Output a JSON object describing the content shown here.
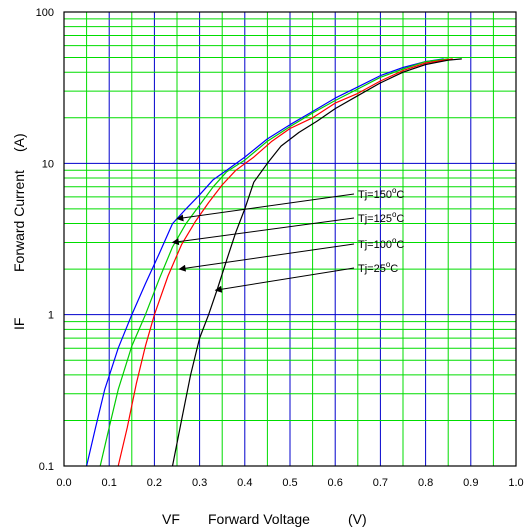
{
  "chart_data": {
    "type": "line",
    "title": "",
    "xlabel_prefix": "VF",
    "xlabel": "Forward Voltage",
    "xlabel_unit": "(V)",
    "ylabel_prefix": "IF",
    "ylabel": "Forward Current",
    "ylabel_unit": "(A)",
    "xlim": [
      0.0,
      1.0
    ],
    "ylim": [
      0.1,
      100
    ],
    "yscale": "log",
    "grid": true,
    "colors": {
      "grid_minor": "#00dd00",
      "grid_major": "#0000cc",
      "frame": "#000000",
      "annotation": "#000000"
    },
    "x_ticks": [
      "0.0",
      "0.1",
      "0.2",
      "0.3",
      "0.4",
      "0.5",
      "0.6",
      "0.7",
      "0.8",
      "0.9",
      "1.0"
    ],
    "y_ticks": [
      {
        "value": 0.1,
        "label": "0.1"
      },
      {
        "value": 1,
        "label": "1"
      },
      {
        "value": 10,
        "label": "10"
      },
      {
        "value": 100,
        "label": "100"
      }
    ],
    "series": [
      {
        "name": "Tj=150°C",
        "color": "#0000ff",
        "x": [
          0.05,
          0.07,
          0.09,
          0.12,
          0.15,
          0.18,
          0.21,
          0.24,
          0.27,
          0.3,
          0.33,
          0.36,
          0.4,
          0.45,
          0.5,
          0.55,
          0.6,
          0.65,
          0.7,
          0.75,
          0.8,
          0.84
        ],
        "y": [
          0.1,
          0.18,
          0.32,
          0.6,
          1.0,
          1.6,
          2.5,
          4.0,
          5.0,
          6.2,
          7.8,
          9.0,
          11.0,
          14.5,
          18.0,
          22.0,
          27.0,
          32.0,
          38.0,
          43.0,
          47.0,
          49.0
        ]
      },
      {
        "name": "Tj=125°C",
        "color": "#00cc00",
        "x": [
          0.08,
          0.1,
          0.12,
          0.15,
          0.18,
          0.21,
          0.24,
          0.27,
          0.3,
          0.33,
          0.36,
          0.4,
          0.45,
          0.5,
          0.55,
          0.6,
          0.65,
          0.7,
          0.75,
          0.8,
          0.85
        ],
        "y": [
          0.1,
          0.18,
          0.32,
          0.62,
          1.0,
          1.7,
          2.8,
          4.0,
          5.3,
          7.0,
          8.8,
          10.5,
          14.0,
          17.5,
          21.5,
          26.0,
          31.0,
          37.0,
          42.0,
          47.0,
          49.0
        ]
      },
      {
        "name": "Tj=100°C",
        "color": "#ff0000",
        "x": [
          0.12,
          0.14,
          0.16,
          0.18,
          0.2,
          0.23,
          0.26,
          0.29,
          0.32,
          0.35,
          0.38,
          0.42,
          0.46,
          0.5,
          0.55,
          0.6,
          0.65,
          0.7,
          0.75,
          0.8,
          0.86
        ],
        "y": [
          0.1,
          0.18,
          0.35,
          0.62,
          1.0,
          1.8,
          2.9,
          4.1,
          5.5,
          7.2,
          9.0,
          11.0,
          14.0,
          17.0,
          20.0,
          25.0,
          29.0,
          35.0,
          41.0,
          46.0,
          49.0
        ]
      },
      {
        "name": "Tj=25°C",
        "color": "#000000",
        "x": [
          0.24,
          0.26,
          0.28,
          0.3,
          0.32,
          0.34,
          0.36,
          0.38,
          0.4,
          0.42,
          0.45,
          0.48,
          0.52,
          0.56,
          0.6,
          0.65,
          0.7,
          0.75,
          0.8,
          0.85,
          0.88
        ],
        "y": [
          0.1,
          0.2,
          0.4,
          0.7,
          1.0,
          1.5,
          2.3,
          3.5,
          5.0,
          7.5,
          10.0,
          13.0,
          16.0,
          19.0,
          23.0,
          28.0,
          34.0,
          40.0,
          45.0,
          48.0,
          49.0
        ]
      }
    ],
    "annotations": [
      {
        "label": "Tj=150",
        "sup": "o",
        "unit": "C",
        "target_x": 0.25,
        "target_y": 4.3
      },
      {
        "label": "Tj=125",
        "sup": "o",
        "unit": "C",
        "target_x": 0.24,
        "target_y": 3.0
      },
      {
        "label": "Tj=100",
        "sup": "o",
        "unit": "C",
        "target_x": 0.255,
        "target_y": 2.0
      },
      {
        "label": "Tj=25",
        "sup": "o",
        "unit": "C",
        "target_x": 0.335,
        "target_y": 1.45
      }
    ]
  }
}
